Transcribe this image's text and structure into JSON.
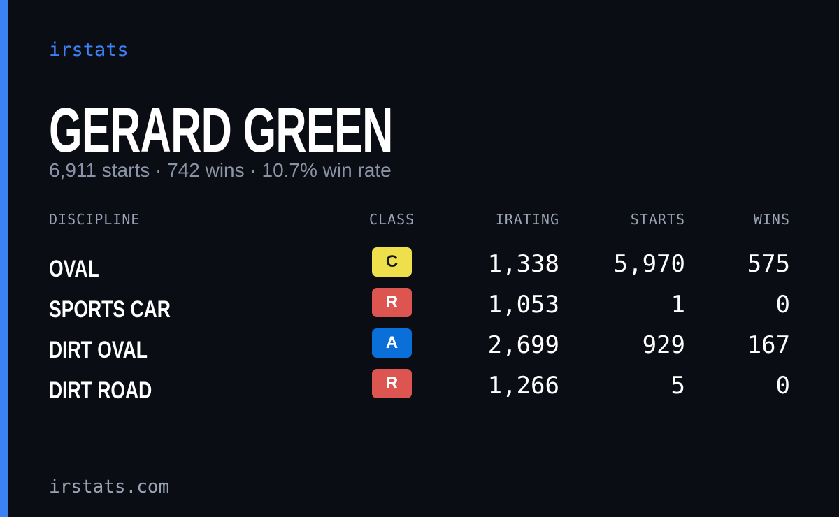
{
  "brand": "irstats",
  "driver": {
    "name": "GERARD GREEN",
    "summary": "6,911 starts · 742 wins · 10.7% win rate"
  },
  "table": {
    "headers": [
      "DISCIPLINE",
      "CLASS",
      "IRATING",
      "STARTS",
      "WINS"
    ],
    "rows": [
      {
        "discipline": "OVAL",
        "class": "C",
        "class_color": "#ede04a",
        "irating": "1,338",
        "starts": "5,970",
        "wins": "575"
      },
      {
        "discipline": "SPORTS CAR",
        "class": "R",
        "class_color": "#dc5550",
        "irating": "1,053",
        "starts": "1",
        "wins": "0"
      },
      {
        "discipline": "DIRT OVAL",
        "class": "A",
        "class_color": "#0a6fd8",
        "irating": "2,699",
        "starts": "929",
        "wins": "167"
      },
      {
        "discipline": "DIRT ROAD",
        "class": "R",
        "class_color": "#dc5550",
        "irating": "1,266",
        "starts": "5",
        "wins": "0"
      }
    ]
  },
  "footer": "irstats.com"
}
